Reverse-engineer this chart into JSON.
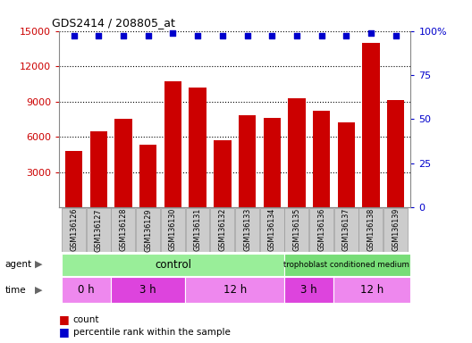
{
  "title": "GDS2414 / 208805_at",
  "samples": [
    "GSM136126",
    "GSM136127",
    "GSM136128",
    "GSM136129",
    "GSM136130",
    "GSM136131",
    "GSM136132",
    "GSM136133",
    "GSM136134",
    "GSM136135",
    "GSM136136",
    "GSM136137",
    "GSM136138",
    "GSM136139"
  ],
  "counts": [
    4800,
    6500,
    7500,
    5300,
    10700,
    10200,
    5700,
    7800,
    7600,
    9300,
    8200,
    7200,
    14000,
    9100
  ],
  "percentile_ranks": [
    97,
    97,
    97,
    97,
    99,
    97,
    97,
    97,
    97,
    97,
    97,
    97,
    99,
    97
  ],
  "bar_color": "#cc0000",
  "dot_color": "#0000cc",
  "ylim_left": [
    0,
    15000
  ],
  "ylim_right": [
    0,
    100
  ],
  "yticks_left": [
    3000,
    6000,
    9000,
    12000,
    15000
  ],
  "yticks_right": [
    0,
    25,
    50,
    75,
    100
  ],
  "ytick_labels_left": [
    "3000",
    "6000",
    "9000",
    "12000",
    "15000"
  ],
  "ytick_labels_right": [
    "0",
    "25",
    "50",
    "75",
    "100%"
  ],
  "legend_count_label": "count",
  "legend_percentile_label": "percentile rank within the sample",
  "bar_color_left": "#cc0000",
  "tick_color_right": "#0000cc",
  "agent_control_color": "#99ee99",
  "agent_trophoblast_color": "#77dd77",
  "time_light_color": "#ee88ee",
  "time_dark_color": "#dd44dd",
  "sample_bg_color": "#cccccc",
  "sample_edge_color": "#999999"
}
